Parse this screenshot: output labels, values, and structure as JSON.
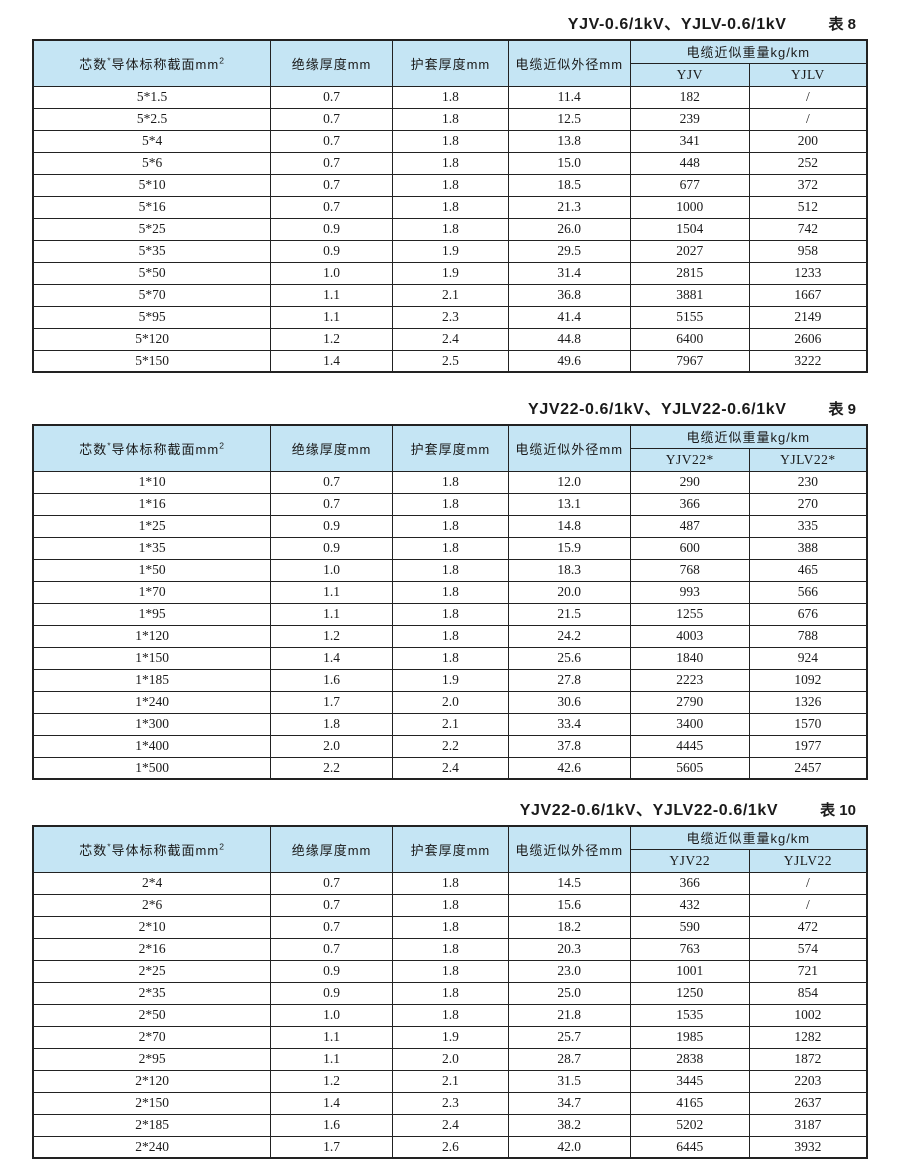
{
  "colors": {
    "header_bg": "#c5e5f4",
    "border": "#222222",
    "page_bg": "#ffffff",
    "text": "#1a1a1a"
  },
  "tables": [
    {
      "title": "YJV-0.6/1kV、YJLV-0.6/1kV",
      "label": "表 8",
      "header": {
        "spec_core": "芯数",
        "spec_sup1": "*",
        "spec_rest": "导体标称截面mm",
        "spec_sup2": "2",
        "insulation": "绝缘厚度mm",
        "sheath": "护套厚度mm",
        "diameter": "电缆近似外径mm",
        "weight": "电缆近似重量kg/km",
        "weight_sub1": "YJV",
        "weight_sub2": "YJLV"
      },
      "rows": [
        [
          "5*1.5",
          "0.7",
          "1.8",
          "11.4",
          "182",
          "/"
        ],
        [
          "5*2.5",
          "0.7",
          "1.8",
          "12.5",
          "239",
          "/"
        ],
        [
          "5*4",
          "0.7",
          "1.8",
          "13.8",
          "341",
          "200"
        ],
        [
          "5*6",
          "0.7",
          "1.8",
          "15.0",
          "448",
          "252"
        ],
        [
          "5*10",
          "0.7",
          "1.8",
          "18.5",
          "677",
          "372"
        ],
        [
          "5*16",
          "0.7",
          "1.8",
          "21.3",
          "1000",
          "512"
        ],
        [
          "5*25",
          "0.9",
          "1.8",
          "26.0",
          "1504",
          "742"
        ],
        [
          "5*35",
          "0.9",
          "1.9",
          "29.5",
          "2027",
          "958"
        ],
        [
          "5*50",
          "1.0",
          "1.9",
          "31.4",
          "2815",
          "1233"
        ],
        [
          "5*70",
          "1.1",
          "2.1",
          "36.8",
          "3881",
          "1667"
        ],
        [
          "5*95",
          "1.1",
          "2.3",
          "41.4",
          "5155",
          "2149"
        ],
        [
          "5*120",
          "1.2",
          "2.4",
          "44.8",
          "6400",
          "2606"
        ],
        [
          "5*150",
          "1.4",
          "2.5",
          "49.6",
          "7967",
          "3222"
        ]
      ]
    },
    {
      "title": "YJV22-0.6/1kV、YJLV22-0.6/1kV",
      "label": "表 9",
      "header": {
        "spec_core": "芯数",
        "spec_sup1": "*",
        "spec_rest": "导体标称截面mm",
        "spec_sup2": "2",
        "insulation": "绝缘厚度mm",
        "sheath": "护套厚度mm",
        "diameter": "电缆近似外径mm",
        "weight": "电缆近似重量kg/km",
        "weight_sub1": "YJV22*",
        "weight_sub2": "YJLV22*"
      },
      "rows": [
        [
          "1*10",
          "0.7",
          "1.8",
          "12.0",
          "290",
          "230"
        ],
        [
          "1*16",
          "0.7",
          "1.8",
          "13.1",
          "366",
          "270"
        ],
        [
          "1*25",
          "0.9",
          "1.8",
          "14.8",
          "487",
          "335"
        ],
        [
          "1*35",
          "0.9",
          "1.8",
          "15.9",
          "600",
          "388"
        ],
        [
          "1*50",
          "1.0",
          "1.8",
          "18.3",
          "768",
          "465"
        ],
        [
          "1*70",
          "1.1",
          "1.8",
          "20.0",
          "993",
          "566"
        ],
        [
          "1*95",
          "1.1",
          "1.8",
          "21.5",
          "1255",
          "676"
        ],
        [
          "1*120",
          "1.2",
          "1.8",
          "24.2",
          "4003",
          "788"
        ],
        [
          "1*150",
          "1.4",
          "1.8",
          "25.6",
          "1840",
          "924"
        ],
        [
          "1*185",
          "1.6",
          "1.9",
          "27.8",
          "2223",
          "1092"
        ],
        [
          "1*240",
          "1.7",
          "2.0",
          "30.6",
          "2790",
          "1326"
        ],
        [
          "1*300",
          "1.8",
          "2.1",
          "33.4",
          "3400",
          "1570"
        ],
        [
          "1*400",
          "2.0",
          "2.2",
          "37.8",
          "4445",
          "1977"
        ],
        [
          "1*500",
          "2.2",
          "2.4",
          "42.6",
          "5605",
          "2457"
        ]
      ]
    },
    {
      "title": "YJV22-0.6/1kV、YJLV22-0.6/1kV",
      "label": "表 10",
      "header": {
        "spec_core": "芯数",
        "spec_sup1": "*",
        "spec_rest": "导体标称截面mm",
        "spec_sup2": "2",
        "insulation": "绝缘厚度mm",
        "sheath": "护套厚度mm",
        "diameter": "电缆近似外径mm",
        "weight": "电缆近似重量kg/km",
        "weight_sub1": "YJV22",
        "weight_sub2": "YJLV22"
      },
      "rows": [
        [
          "2*4",
          "0.7",
          "1.8",
          "14.5",
          "366",
          "/"
        ],
        [
          "2*6",
          "0.7",
          "1.8",
          "15.6",
          "432",
          "/"
        ],
        [
          "2*10",
          "0.7",
          "1.8",
          "18.2",
          "590",
          "472"
        ],
        [
          "2*16",
          "0.7",
          "1.8",
          "20.3",
          "763",
          "574"
        ],
        [
          "2*25",
          "0.9",
          "1.8",
          "23.0",
          "1001",
          "721"
        ],
        [
          "2*35",
          "0.9",
          "1.8",
          "25.0",
          "1250",
          "854"
        ],
        [
          "2*50",
          "1.0",
          "1.8",
          "21.8",
          "1535",
          "1002"
        ],
        [
          "2*70",
          "1.1",
          "1.9",
          "25.7",
          "1985",
          "1282"
        ],
        [
          "2*95",
          "1.1",
          "2.0",
          "28.7",
          "2838",
          "1872"
        ],
        [
          "2*120",
          "1.2",
          "2.1",
          "31.5",
          "3445",
          "2203"
        ],
        [
          "2*150",
          "1.4",
          "2.3",
          "34.7",
          "4165",
          "2637"
        ],
        [
          "2*185",
          "1.6",
          "2.4",
          "38.2",
          "5202",
          "3187"
        ],
        [
          "2*240",
          "1.7",
          "2.6",
          "42.0",
          "6445",
          "3932"
        ]
      ]
    }
  ]
}
